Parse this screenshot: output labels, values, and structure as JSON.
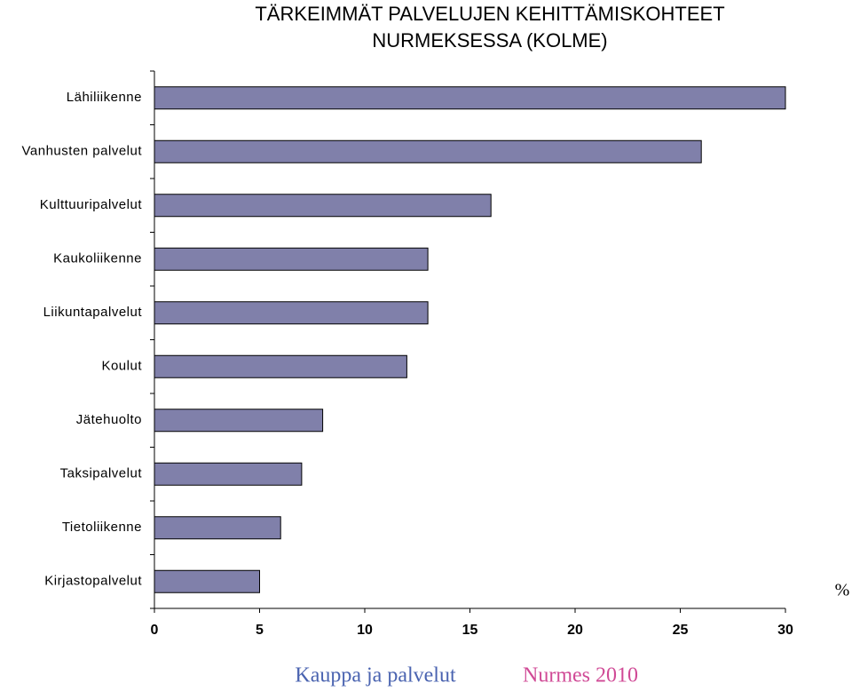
{
  "chart_data": {
    "type": "barh",
    "title": [
      "TÄRKEIMMÄT PALVELUJEN KEHITTÄMISKOHTEET",
      "NURMEKSESSA (KOLME)"
    ],
    "categories": [
      "Lähiliikenne",
      "Vanhusten palvelut",
      "Kulttuuripalvelut",
      "Kaukoliikenne",
      "Liikuntapalvelut",
      "Koulut",
      "Jätehuolto",
      "Taksipalvelut",
      "Tietoliikenne",
      "Kirjastopalvelut"
    ],
    "values": [
      30,
      26,
      16,
      13,
      13,
      12,
      8,
      7,
      6,
      5
    ],
    "color": "#8080aa",
    "xlim": [
      0,
      30
    ],
    "xticks": [
      0,
      5,
      10,
      15,
      20,
      25,
      30
    ],
    "x_label": "%",
    "footer": {
      "left": "Kauppa ja palvelut",
      "right": "Nurmes 2010"
    }
  }
}
